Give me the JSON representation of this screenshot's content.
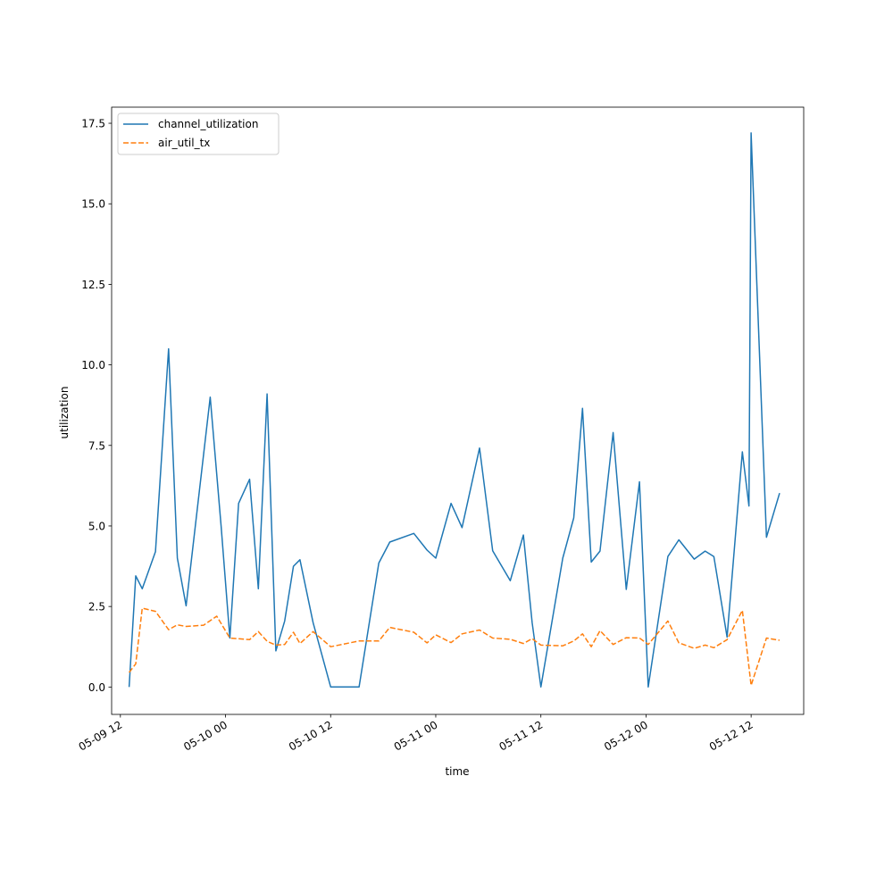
{
  "chart_data": {
    "type": "line",
    "xlabel": "time",
    "ylabel": "utilization",
    "xlim": [
      "2024-05-09T11:00",
      "2024-05-12T18:00"
    ],
    "ylim": [
      -0.85,
      18.0
    ],
    "y_ticks": [
      0.0,
      2.5,
      5.0,
      7.5,
      10.0,
      12.5,
      15.0,
      17.5
    ],
    "y_tick_labels": [
      "0.0",
      "2.5",
      "5.0",
      "7.5",
      "10.0",
      "12.5",
      "15.0",
      "17.5"
    ],
    "x_ticks": [
      "2024-05-09T12:00",
      "2024-05-10T00:00",
      "2024-05-10T12:00",
      "2024-05-11T00:00",
      "2024-05-11T12:00",
      "2024-05-12T00:00",
      "2024-05-12T12:00"
    ],
    "x_tick_labels": [
      "05-09 12",
      "05-10 00",
      "05-10 12",
      "05-11 00",
      "05-11 12",
      "05-12 00",
      "05-12 12"
    ],
    "grid": false,
    "legend_position": "top-left",
    "series": [
      {
        "name": "channel_utilization",
        "color": "#1f77b4",
        "style": "solid",
        "points": [
          [
            "2024-05-09T13:00",
            0.0
          ],
          [
            "2024-05-09T13:45",
            3.45
          ],
          [
            "2024-05-09T14:30",
            3.05
          ],
          [
            "2024-05-09T16:00",
            4.2
          ],
          [
            "2024-05-09T17:30",
            10.5
          ],
          [
            "2024-05-09T18:30",
            4.0
          ],
          [
            "2024-05-09T19:30",
            2.52
          ],
          [
            "2024-05-09T22:15",
            9.0
          ],
          [
            "2024-05-09T23:30",
            5.0
          ],
          [
            "2024-05-10T00:30",
            1.52
          ],
          [
            "2024-05-10T01:30",
            5.7
          ],
          [
            "2024-05-10T02:45",
            6.45
          ],
          [
            "2024-05-10T03:45",
            3.05
          ],
          [
            "2024-05-10T04:45",
            9.1
          ],
          [
            "2024-05-10T05:45",
            1.12
          ],
          [
            "2024-05-10T06:45",
            2.05
          ],
          [
            "2024-05-10T07:45",
            3.75
          ],
          [
            "2024-05-10T08:30",
            3.95
          ],
          [
            "2024-05-10T10:00",
            2.0
          ],
          [
            "2024-05-10T12:00",
            0.0
          ],
          [
            "2024-05-10T15:15",
            0.0
          ],
          [
            "2024-05-10T17:30",
            3.85
          ],
          [
            "2024-05-10T18:45",
            4.5
          ],
          [
            "2024-05-10T21:30",
            4.77
          ],
          [
            "2024-05-10T23:00",
            4.25
          ],
          [
            "2024-05-11T00:00",
            4.0
          ],
          [
            "2024-05-11T01:45",
            5.7
          ],
          [
            "2024-05-11T03:00",
            4.95
          ],
          [
            "2024-05-11T05:00",
            7.42
          ],
          [
            "2024-05-11T06:30",
            4.23
          ],
          [
            "2024-05-11T08:30",
            3.3
          ],
          [
            "2024-05-11T10:00",
            4.72
          ],
          [
            "2024-05-11T11:00",
            2.0
          ],
          [
            "2024-05-11T12:00",
            0.0
          ],
          [
            "2024-05-11T14:30",
            4.0
          ],
          [
            "2024-05-11T15:45",
            5.25
          ],
          [
            "2024-05-11T16:45",
            8.65
          ],
          [
            "2024-05-11T17:45",
            3.88
          ],
          [
            "2024-05-11T18:45",
            4.22
          ],
          [
            "2024-05-11T20:15",
            7.9
          ],
          [
            "2024-05-11T21:45",
            3.03
          ],
          [
            "2024-05-11T23:15",
            6.37
          ],
          [
            "2024-05-12T00:15",
            0.0
          ],
          [
            "2024-05-12T02:30",
            4.05
          ],
          [
            "2024-05-12T03:45",
            4.57
          ],
          [
            "2024-05-12T05:30",
            3.97
          ],
          [
            "2024-05-12T06:45",
            4.22
          ],
          [
            "2024-05-12T07:45",
            4.05
          ],
          [
            "2024-05-12T09:15",
            1.55
          ],
          [
            "2024-05-12T11:00",
            7.3
          ],
          [
            "2024-05-12T11:45",
            5.62
          ],
          [
            "2024-05-12T12:00",
            17.2
          ],
          [
            "2024-05-12T13:45",
            4.65
          ],
          [
            "2024-05-12T15:15",
            6.02
          ]
        ]
      },
      {
        "name": "air_util_tx",
        "color": "#ff7f0e",
        "style": "dashed",
        "points": [
          [
            "2024-05-09T13:00",
            0.45
          ],
          [
            "2024-05-09T13:45",
            0.72
          ],
          [
            "2024-05-09T14:30",
            2.45
          ],
          [
            "2024-05-09T16:00",
            2.35
          ],
          [
            "2024-05-09T17:30",
            1.78
          ],
          [
            "2024-05-09T18:30",
            1.93
          ],
          [
            "2024-05-09T19:30",
            1.88
          ],
          [
            "2024-05-09T21:30",
            1.92
          ],
          [
            "2024-05-09T23:00",
            2.2
          ],
          [
            "2024-05-10T00:30",
            1.52
          ],
          [
            "2024-05-10T02:45",
            1.47
          ],
          [
            "2024-05-10T03:45",
            1.72
          ],
          [
            "2024-05-10T04:45",
            1.42
          ],
          [
            "2024-05-10T05:45",
            1.3
          ],
          [
            "2024-05-10T06:45",
            1.32
          ],
          [
            "2024-05-10T07:45",
            1.7
          ],
          [
            "2024-05-10T08:30",
            1.35
          ],
          [
            "2024-05-10T10:00",
            1.72
          ],
          [
            "2024-05-10T12:00",
            1.25
          ],
          [
            "2024-05-10T15:15",
            1.43
          ],
          [
            "2024-05-10T17:30",
            1.43
          ],
          [
            "2024-05-10T18:45",
            1.85
          ],
          [
            "2024-05-10T21:30",
            1.7
          ],
          [
            "2024-05-10T23:00",
            1.37
          ],
          [
            "2024-05-11T00:00",
            1.62
          ],
          [
            "2024-05-11T01:45",
            1.38
          ],
          [
            "2024-05-11T03:00",
            1.65
          ],
          [
            "2024-05-11T05:00",
            1.77
          ],
          [
            "2024-05-11T06:30",
            1.52
          ],
          [
            "2024-05-11T08:30",
            1.48
          ],
          [
            "2024-05-11T10:00",
            1.35
          ],
          [
            "2024-05-11T11:00",
            1.5
          ],
          [
            "2024-05-11T12:00",
            1.3
          ],
          [
            "2024-05-11T14:30",
            1.28
          ],
          [
            "2024-05-11T15:45",
            1.43
          ],
          [
            "2024-05-11T16:45",
            1.65
          ],
          [
            "2024-05-11T17:45",
            1.25
          ],
          [
            "2024-05-11T18:45",
            1.75
          ],
          [
            "2024-05-11T20:15",
            1.32
          ],
          [
            "2024-05-11T21:45",
            1.53
          ],
          [
            "2024-05-11T23:15",
            1.52
          ],
          [
            "2024-05-12T00:15",
            1.32
          ],
          [
            "2024-05-12T02:30",
            2.05
          ],
          [
            "2024-05-12T03:45",
            1.37
          ],
          [
            "2024-05-12T05:30",
            1.2
          ],
          [
            "2024-05-12T06:45",
            1.3
          ],
          [
            "2024-05-12T07:45",
            1.22
          ],
          [
            "2024-05-12T09:15",
            1.47
          ],
          [
            "2024-05-12T11:00",
            2.38
          ],
          [
            "2024-05-12T12:00",
            0.05
          ],
          [
            "2024-05-12T13:45",
            1.52
          ],
          [
            "2024-05-12T15:15",
            1.45
          ]
        ]
      }
    ]
  }
}
